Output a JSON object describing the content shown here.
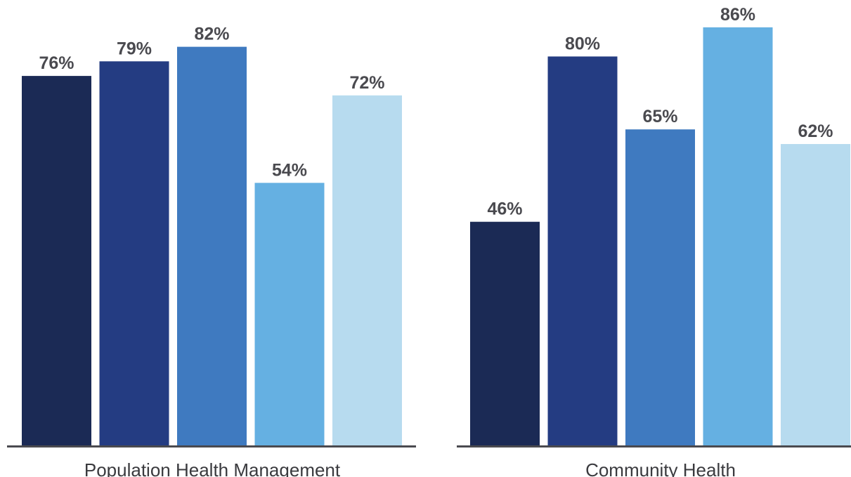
{
  "chart_data": [
    {
      "type": "bar",
      "title": "",
      "group_label": "Population Health Management",
      "ylim": [
        0,
        100
      ],
      "values": [
        76,
        79,
        82,
        54,
        72
      ],
      "labels": [
        "76%",
        "79%",
        "82%",
        "54%",
        "72%"
      ],
      "colors": [
        "#1b2a55",
        "#243c82",
        "#3f7ac0",
        "#65b0e2",
        "#b7dbef"
      ]
    },
    {
      "type": "bar",
      "title": "",
      "group_label": "Community Health",
      "ylim": [
        0,
        100
      ],
      "values": [
        46,
        80,
        65,
        86,
        62
      ],
      "labels": [
        "46%",
        "80%",
        "65%",
        "86%",
        "62%"
      ],
      "colors": [
        "#1b2a55",
        "#243c82",
        "#3f7ac0",
        "#65b0e2",
        "#b7dbef"
      ]
    }
  ],
  "colors": {
    "axis": "#4a4a4f",
    "label": "#4a4a4f"
  }
}
